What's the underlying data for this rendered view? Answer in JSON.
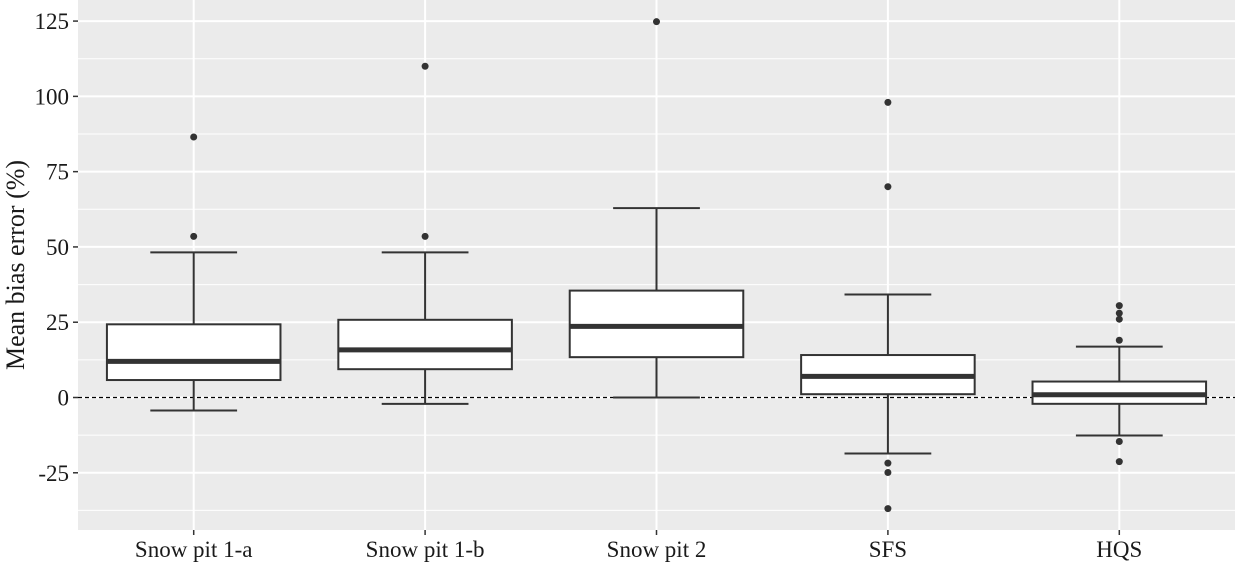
{
  "chart_data": {
    "type": "box",
    "title": "",
    "xlabel": "",
    "ylabel": "Mean bias error (%)",
    "ylim": [
      -44,
      132
    ],
    "yticks": [
      -25,
      0,
      25,
      50,
      75,
      100,
      125
    ],
    "ytick_labels": [
      "-25",
      "0",
      "25",
      "50",
      "75",
      "100",
      "125"
    ],
    "grid": true,
    "reference_line": {
      "y": 0,
      "style": "dashed"
    },
    "categories": [
      "Snow pit 1-a",
      "Snow pit 1-b",
      "Snow pit 2",
      "SFS",
      "HQS"
    ],
    "boxes": [
      {
        "name": "Snow pit 1-a",
        "whisker_low": -4.3,
        "q1": 5.8,
        "median": 12.0,
        "q3": 24.3,
        "whisker_high": 48.2,
        "outliers": [
          53.5,
          86.5
        ]
      },
      {
        "name": "Snow pit 1-b",
        "whisker_low": -2.1,
        "q1": 9.4,
        "median": 15.8,
        "q3": 25.8,
        "whisker_high": 48.2,
        "outliers": [
          53.5,
          110.0
        ]
      },
      {
        "name": "Snow pit 2",
        "whisker_low": 0.0,
        "q1": 13.4,
        "median": 23.6,
        "q3": 35.5,
        "whisker_high": 62.9,
        "outliers": [
          124.8
        ]
      },
      {
        "name": "SFS",
        "whisker_low": -18.6,
        "q1": 1.1,
        "median": 7.0,
        "q3": 14.1,
        "whisker_high": 34.2,
        "outliers": [
          -21.8,
          -24.9,
          -36.9,
          70.0,
          98.0
        ]
      },
      {
        "name": "HQS",
        "whisker_low": -12.6,
        "q1": -2.1,
        "median": 0.9,
        "q3": 5.3,
        "whisker_high": 16.9,
        "outliers": [
          -21.3,
          -14.6,
          19.0,
          26.0,
          28.0,
          30.5
        ]
      }
    ],
    "colors": {
      "panel_background": "#ebebeb",
      "grid": "#ffffff",
      "box_fill": "#ffffff",
      "box_stroke": "#333333",
      "outlier": "#333333",
      "reference_line": "#000000"
    }
  }
}
